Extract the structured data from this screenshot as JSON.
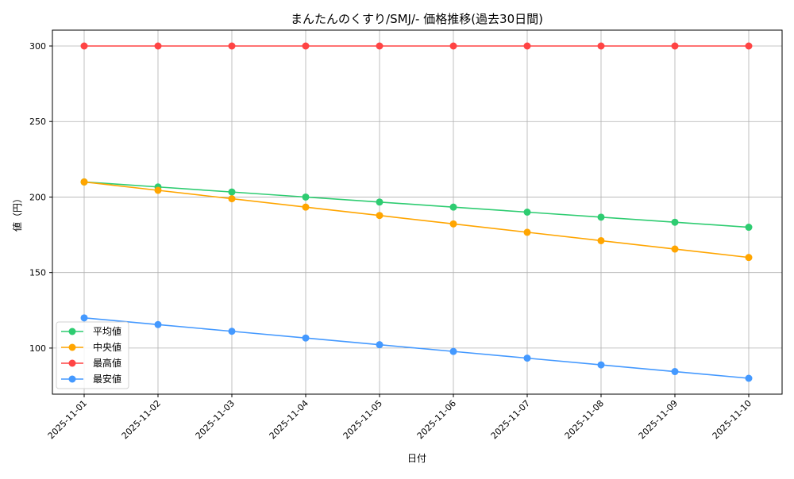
{
  "chart_data": {
    "type": "line",
    "title": "まんたんのくすり/SMJ/- 価格推移(過去30日間)",
    "xlabel": "日付",
    "ylabel": "値（円）",
    "categories": [
      "2025-11-01",
      "2025-11-02",
      "2025-11-03",
      "2025-11-04",
      "2025-11-05",
      "2025-11-06",
      "2025-11-07",
      "2025-11-08",
      "2025-11-09",
      "2025-11-10"
    ],
    "ylim": [
      69.5,
      310.5
    ],
    "yticks": [
      100,
      150,
      200,
      250,
      300
    ],
    "grid": true,
    "legend": "lower-left",
    "series": [
      {
        "name": "平均値",
        "color": "#2ecc71",
        "values": [
          210,
          206.67,
          203.33,
          200,
          196.67,
          193.33,
          190,
          186.67,
          183.33,
          180
        ]
      },
      {
        "name": "中央値",
        "color": "#ffa500",
        "values": [
          210,
          204.44,
          198.89,
          193.33,
          187.78,
          182.22,
          176.67,
          171.11,
          165.56,
          160
        ]
      },
      {
        "name": "最高値",
        "color": "#ff4444",
        "values": [
          300,
          300,
          300,
          300,
          300,
          300,
          300,
          300,
          300,
          300
        ]
      },
      {
        "name": "最安値",
        "color": "#4499ff",
        "values": [
          120,
          115.56,
          111.11,
          106.67,
          102.22,
          97.78,
          93.33,
          88.89,
          84.44,
          80
        ]
      }
    ]
  }
}
